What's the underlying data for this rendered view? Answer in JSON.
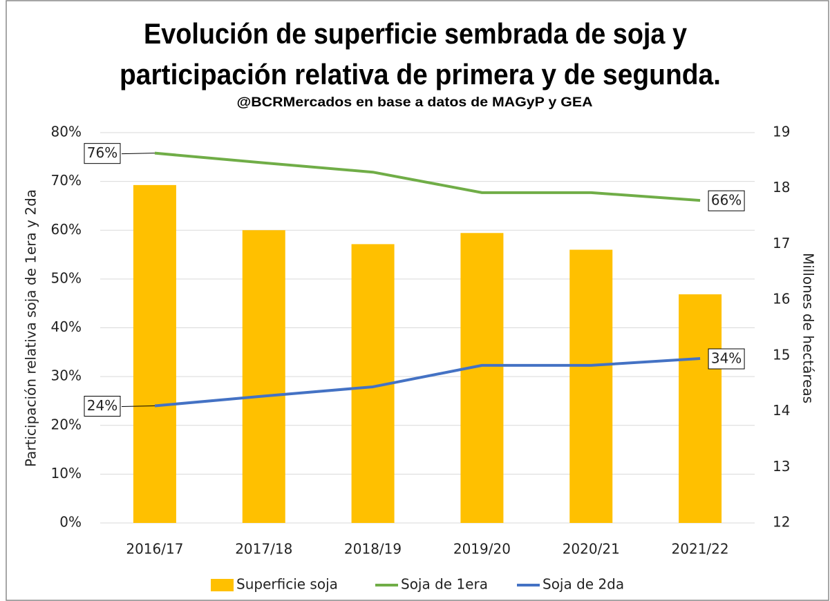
{
  "chart_data": {
    "type": "bar_line",
    "title": [
      "Evolución de superficie sembrada de soja y",
      "participación relativa de primera y de segunda."
    ],
    "subtitle": "@BCRMercados  en base a datos de  MAGyP y GEA",
    "y_label": "Participación relativa soja de 1era y 2da",
    "y2_label": "Millones de hectáreas",
    "categories": [
      "2016/17",
      "2017/18",
      "2018/19",
      "2019/20",
      "2020/21",
      "2021/22"
    ],
    "series": [
      {
        "name": "Superficie soja",
        "type": "bar",
        "axis": "y2",
        "color": "#FFC000",
        "values": [
          18.06,
          17.25,
          17.0,
          17.2,
          16.9,
          16.1
        ]
      },
      {
        "name": "Soja de 1era",
        "type": "line",
        "color": "#70AD47",
        "values": [
          75.8,
          73.8,
          71.9,
          67.7,
          67.7,
          66.1
        ],
        "value_labels": [
          "76%",
          null,
          null,
          null,
          null,
          "66%"
        ]
      },
      {
        "name": "Soja de 2da",
        "type": "line",
        "color": "#4472C4",
        "values": [
          24.0,
          26.0,
          27.9,
          32.3,
          32.3,
          33.7
        ],
        "value_labels": [
          "24%",
          null,
          null,
          null,
          null,
          "34%"
        ]
      }
    ],
    "ylim": [
      0,
      80
    ],
    "yticks": [
      {
        "value": 0,
        "label": "0%"
      },
      {
        "value": 10,
        "label": "10%"
      },
      {
        "value": 20,
        "label": "20%"
      },
      {
        "value": 30,
        "label": "30%"
      },
      {
        "value": 40,
        "label": "40%"
      },
      {
        "value": 50,
        "label": "50%"
      },
      {
        "value": 60,
        "label": "60%"
      },
      {
        "value": 70,
        "label": "70%"
      },
      {
        "value": 80,
        "label": "80%"
      }
    ],
    "y2lim": [
      12,
      19
    ],
    "y2ticks": [
      12,
      13,
      14,
      15,
      16,
      17,
      18,
      19
    ],
    "grid": true,
    "legend": "bottom"
  }
}
